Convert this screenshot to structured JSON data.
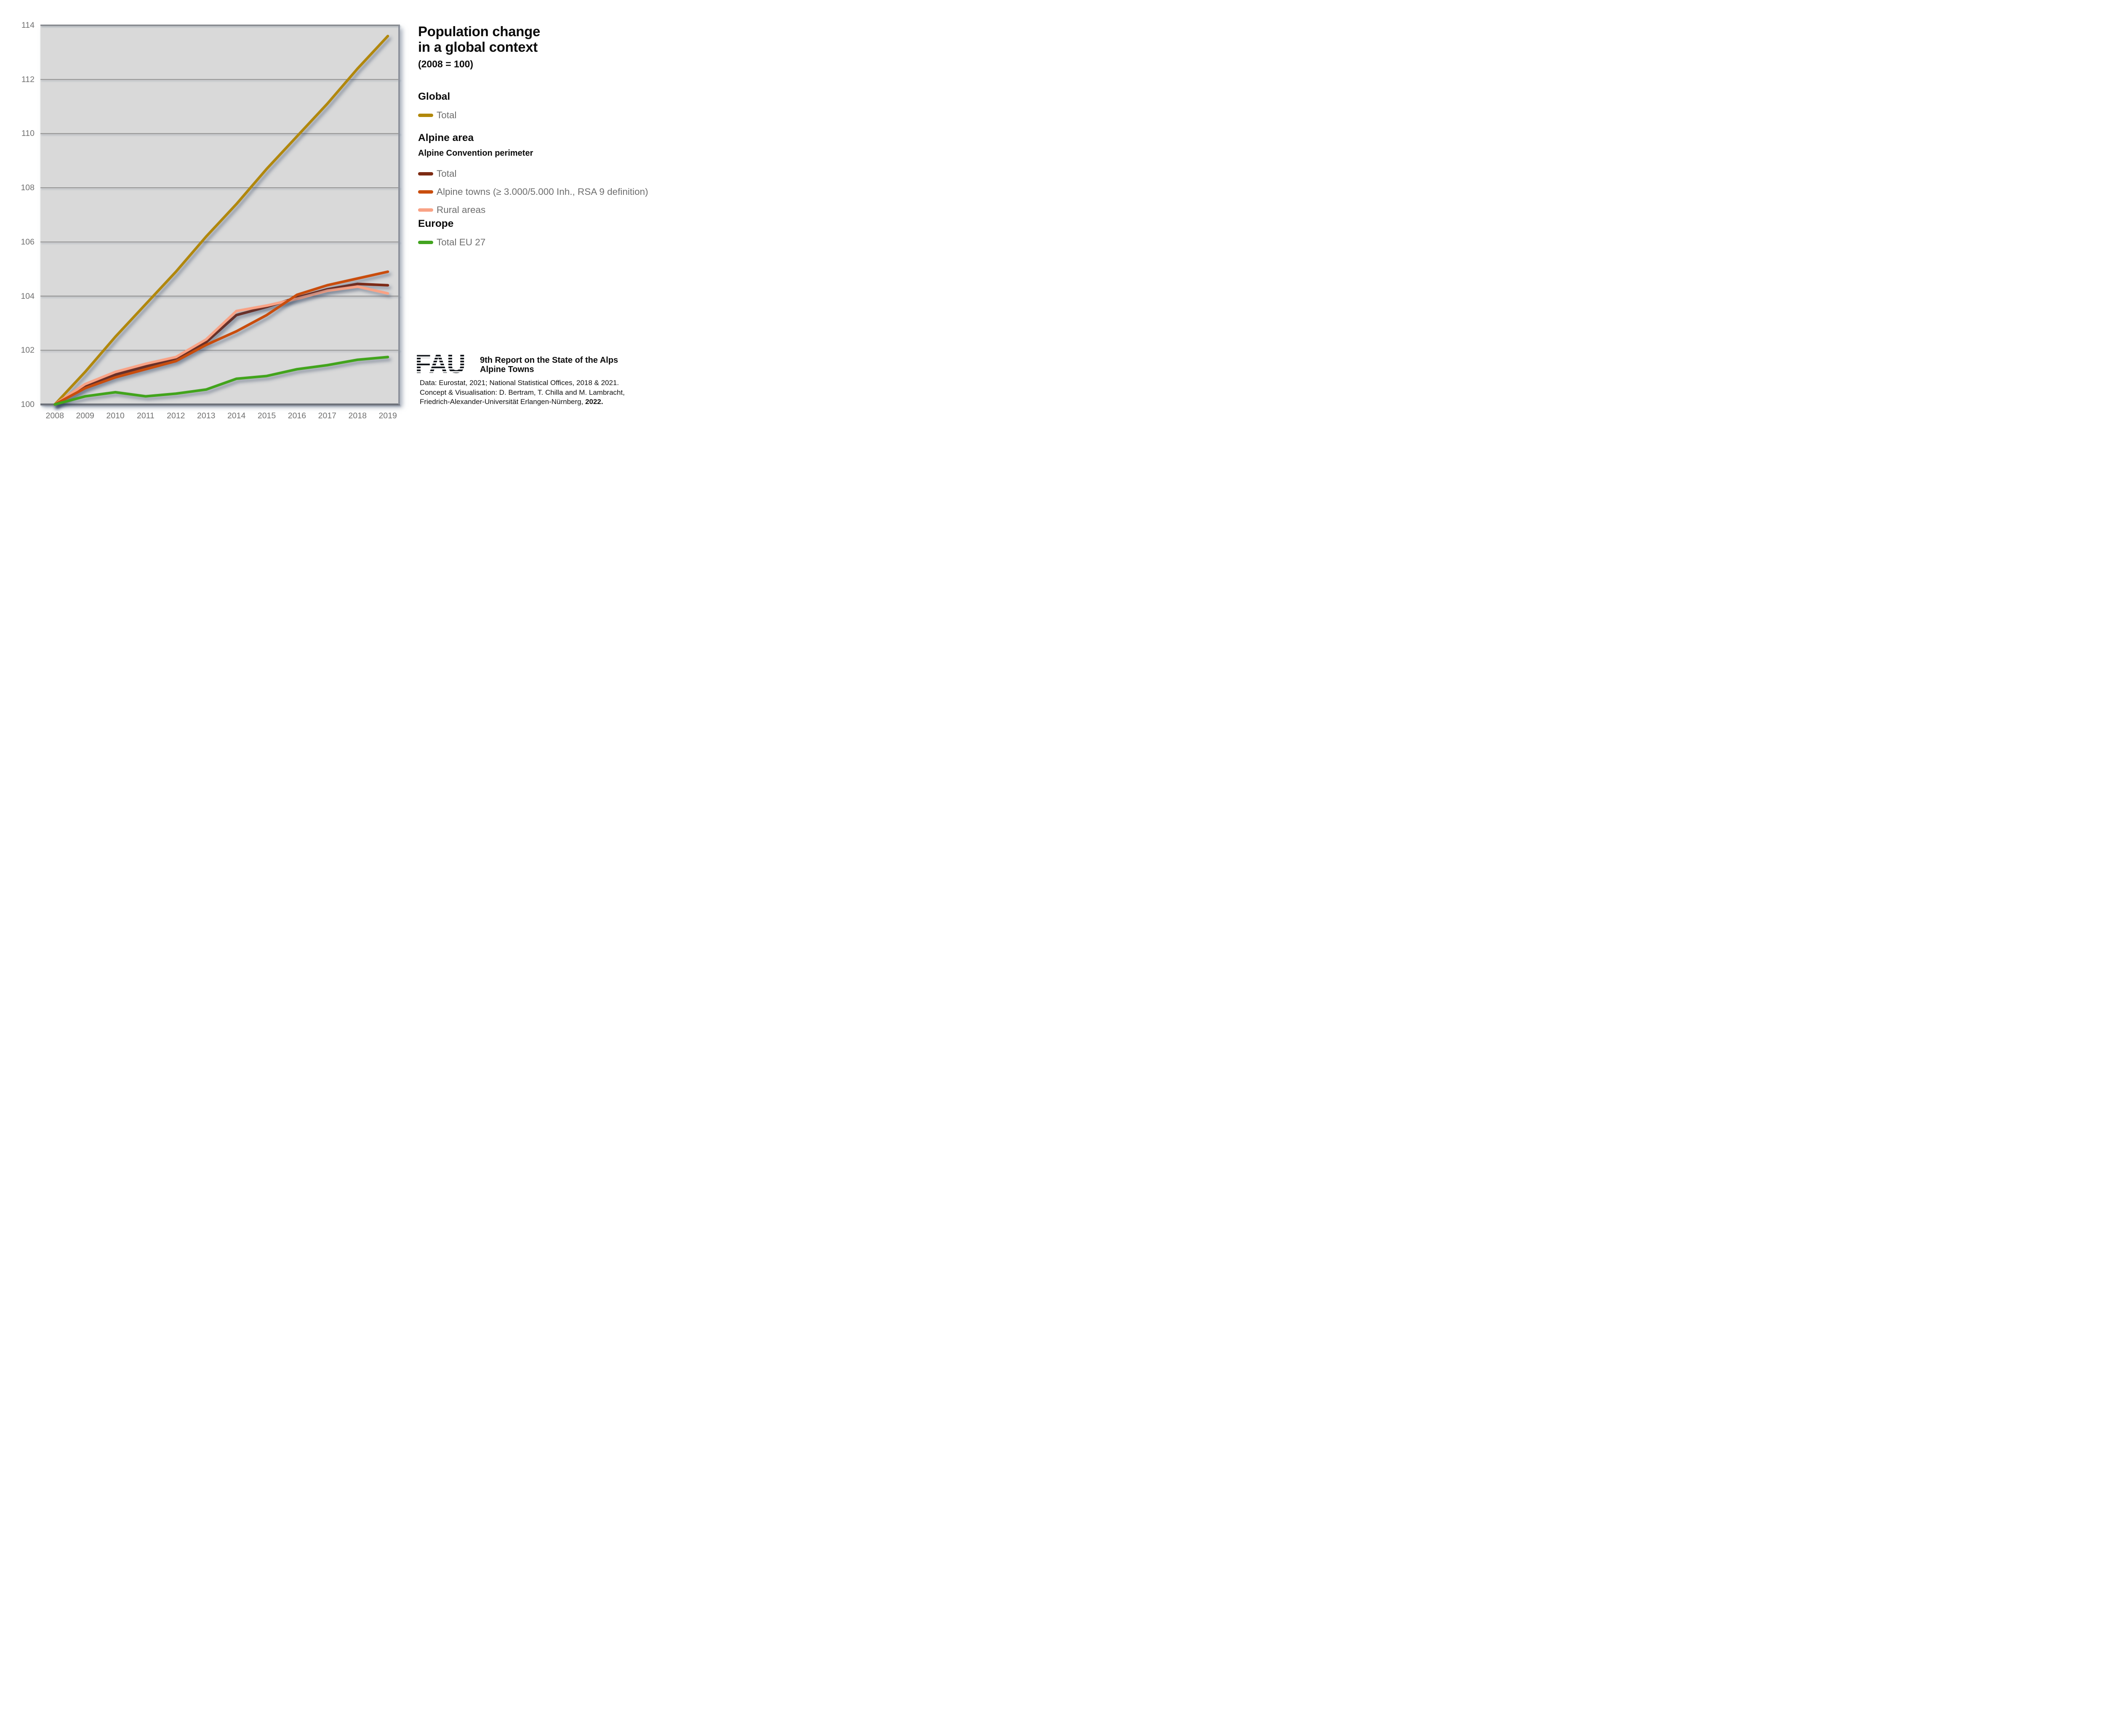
{
  "title": {
    "line1": "Population change",
    "line2": "in a global context",
    "subtitle": "(2008 = 100)"
  },
  "legend": {
    "global": {
      "header": "Global",
      "items": [
        {
          "label": "Total",
          "color": "#b1880a"
        }
      ]
    },
    "alpine": {
      "header": "Alpine area",
      "subheader": "Alpine Convention perimeter",
      "items": [
        {
          "label": "Total",
          "color": "#7d2b13"
        },
        {
          "label": "Alpine towns (≥ 3.000/5.000 Inh., RSA 9 definition)",
          "color": "#c94e0e"
        },
        {
          "label": "Rural areas",
          "color": "#f9a285"
        }
      ]
    },
    "europe": {
      "header": "Europe",
      "items": [
        {
          "label": "Total EU 27",
          "color": "#42a41f"
        }
      ]
    }
  },
  "footer": {
    "logo_text": "FAU",
    "report_line1": "9th Report on the State of the Alps",
    "report_line2": "Alpine Towns",
    "credits_line1": "Data: Eurostat, 2021; National Statistical Offices, 2018 & 2021.",
    "credits_line2": "Concept & Visualisation: D. Bertram, T. Chilla and M. Lambracht,",
    "credits_line3": "Friedrich-Alexander-Universität Erlangen-Nürnberg, ",
    "credits_line3_bold": "2022."
  },
  "chart_data": {
    "type": "line",
    "title": "Population change in a global context (2008 = 100)",
    "x": [
      2008,
      2009,
      2010,
      2011,
      2012,
      2013,
      2014,
      2015,
      2016,
      2017,
      2018,
      2019
    ],
    "ylim": [
      100,
      114
    ],
    "yticks": [
      100,
      102,
      104,
      106,
      108,
      110,
      112,
      114
    ],
    "grid": true,
    "legend_position": "right",
    "plot_bg_color": "#d9d9d9",
    "gridline_color": "#8a8a8a",
    "axis_line_color": "#6d717a",
    "series": [
      {
        "id": "global-total",
        "name": "Global — Total",
        "color": "#b1880a",
        "values": [
          100,
          101.2,
          102.5,
          103.7,
          104.9,
          106.2,
          107.4,
          108.7,
          109.9,
          111.1,
          112.4,
          113.6
        ]
      },
      {
        "id": "alpine-total",
        "name": "Alpine area — Total (Alpine Convention perimeter)",
        "color": "#7d2b13",
        "values": [
          100,
          100.65,
          101.1,
          101.4,
          101.7,
          102.3,
          103.3,
          103.6,
          103.95,
          104.25,
          104.45,
          104.4
        ]
      },
      {
        "id": "alpine-towns",
        "name": "Alpine towns (≥ 3.000/5.000 Inh., RSA 9 definition)",
        "color": "#c94e0e",
        "values": [
          100,
          100.6,
          101.0,
          101.3,
          101.6,
          102.2,
          102.7,
          103.3,
          104.05,
          104.4,
          104.65,
          104.9
        ]
      },
      {
        "id": "rural-areas",
        "name": "Rural areas",
        "color": "#f9a285",
        "values": [
          100,
          100.75,
          101.2,
          101.5,
          101.75,
          102.4,
          103.45,
          103.65,
          103.9,
          104.2,
          104.35,
          104.1
        ]
      },
      {
        "id": "eu27-total",
        "name": "Europe — Total EU 27",
        "color": "#42a41f",
        "values": [
          100,
          100.3,
          100.45,
          100.3,
          100.4,
          100.55,
          100.95,
          101.05,
          101.3,
          101.45,
          101.65,
          101.75
        ]
      }
    ]
  }
}
